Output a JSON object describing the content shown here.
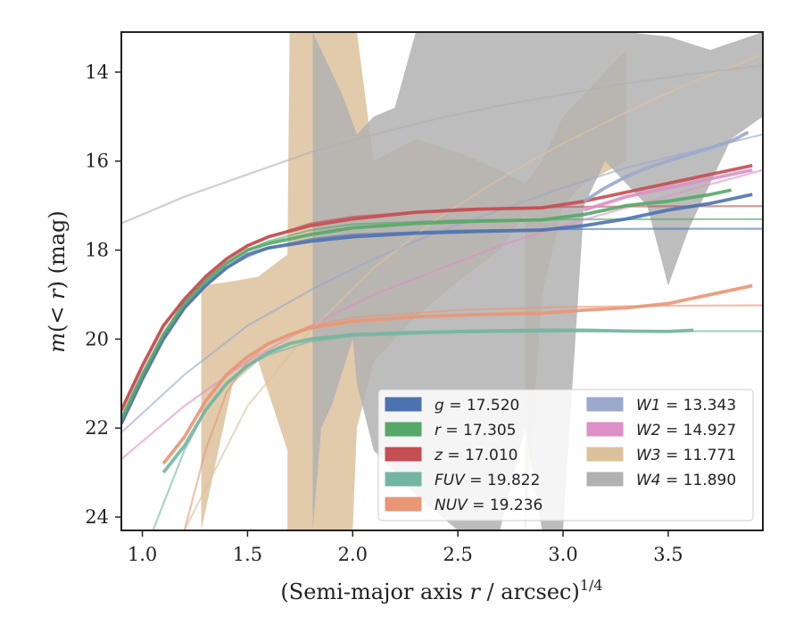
{
  "chart_data": {
    "type": "line",
    "title": "",
    "xlabel_main": "(Semi-major axis ",
    "xlabel_var": "r",
    "xlabel_tail": " / arcsec)",
    "xlabel_sup": "1/4",
    "ylabel_pre": "m",
    "ylabel_mid": "(< ",
    "ylabel_var": "r",
    "ylabel_post": ") (mag)",
    "xlim": [
      0.9,
      3.95
    ],
    "ylim": [
      24.3,
      13.1
    ],
    "y_inverted": true,
    "x_ticks": [
      1.0,
      1.5,
      2.0,
      2.5,
      3.0,
      3.5
    ],
    "x_tick_labels": [
      "1.0",
      "1.5",
      "2.0",
      "2.5",
      "3.0",
      "3.5"
    ],
    "y_ticks": [
      14,
      16,
      18,
      20,
      22,
      24
    ],
    "y_tick_labels": [
      "14",
      "16",
      "18",
      "20",
      "22",
      "24"
    ],
    "grid": false,
    "legend_position": "lower-right",
    "legend": [
      {
        "band": "g",
        "value": "17.520",
        "color": "#4c72b0"
      },
      {
        "band": "W1",
        "value": "13.343",
        "color": "#9aa9cc"
      },
      {
        "band": "r",
        "value": "17.305",
        "color": "#55a868"
      },
      {
        "band": "W2",
        "value": "14.927",
        "color": "#dd8fc6"
      },
      {
        "band": "z",
        "value": "17.010",
        "color": "#c44e52"
      },
      {
        "band": "W3",
        "value": "11.771",
        "color": "#dcc29c"
      },
      {
        "band": "FUV",
        "value": "19.822",
        "color": "#72b6a1"
      },
      {
        "band": "W4",
        "value": "11.890",
        "color": "#b1b1b1"
      },
      {
        "band": "NUV",
        "value": "19.236",
        "color": "#e99675"
      }
    ],
    "series": [
      {
        "name": "g",
        "color": "#4c72b0",
        "kind": "data",
        "x": [
          0.9,
          1.0,
          1.1,
          1.2,
          1.3,
          1.4,
          1.5,
          1.6,
          1.8,
          2.0,
          2.3,
          2.6,
          2.9,
          3.1,
          3.3,
          3.5,
          3.7,
          3.9
        ],
        "y": [
          21.9,
          20.9,
          20.0,
          19.3,
          18.8,
          18.4,
          18.1,
          17.95,
          17.8,
          17.7,
          17.62,
          17.58,
          17.55,
          17.45,
          17.3,
          17.1,
          16.95,
          16.75
        ]
      },
      {
        "name": "r",
        "color": "#55a868",
        "kind": "data",
        "x": [
          0.9,
          1.0,
          1.1,
          1.2,
          1.3,
          1.4,
          1.5,
          1.6,
          1.8,
          2.0,
          2.3,
          2.6,
          2.9,
          3.1,
          3.3,
          3.5,
          3.7,
          3.8
        ],
        "y": [
          21.8,
          20.8,
          19.9,
          19.2,
          18.7,
          18.3,
          18.0,
          17.85,
          17.65,
          17.5,
          17.4,
          17.35,
          17.32,
          17.2,
          17.0,
          16.9,
          16.75,
          16.65
        ]
      },
      {
        "name": "z",
        "color": "#c44e52",
        "kind": "data",
        "x": [
          0.9,
          1.0,
          1.1,
          1.2,
          1.3,
          1.4,
          1.5,
          1.6,
          1.8,
          2.0,
          2.3,
          2.6,
          2.9,
          3.1,
          3.3,
          3.5,
          3.7,
          3.9
        ],
        "y": [
          21.6,
          20.6,
          19.7,
          19.1,
          18.6,
          18.2,
          17.9,
          17.7,
          17.45,
          17.3,
          17.15,
          17.08,
          17.05,
          16.9,
          16.7,
          16.5,
          16.3,
          16.1
        ]
      },
      {
        "name": "FUV",
        "color": "#72b6a1",
        "kind": "data",
        "x": [
          1.1,
          1.2,
          1.3,
          1.4,
          1.5,
          1.6,
          1.7,
          1.8,
          2.0,
          2.3,
          2.6,
          2.9,
          3.1,
          3.3,
          3.5,
          3.62
        ],
        "y": [
          23.0,
          22.4,
          21.6,
          21.0,
          20.6,
          20.3,
          20.1,
          20.0,
          19.9,
          19.85,
          19.82,
          19.8,
          19.8,
          19.82,
          19.83,
          19.8
        ]
      },
      {
        "name": "NUV",
        "color": "#e99675",
        "kind": "data",
        "x": [
          1.1,
          1.2,
          1.3,
          1.4,
          1.5,
          1.6,
          1.7,
          1.8,
          2.0,
          2.3,
          2.6,
          2.9,
          3.1,
          3.3,
          3.5,
          3.7,
          3.9
        ],
        "y": [
          22.8,
          22.2,
          21.4,
          20.8,
          20.4,
          20.1,
          19.9,
          19.75,
          19.6,
          19.5,
          19.45,
          19.42,
          19.35,
          19.3,
          19.2,
          19.0,
          18.8
        ]
      },
      {
        "name": "g-model",
        "color": "#4c72b0",
        "kind": "model",
        "x": [
          0.9,
          1.0,
          1.1,
          1.2,
          1.3,
          1.4,
          1.5,
          1.6,
          1.8,
          2.0,
          2.5,
          3.0,
          3.5,
          3.95
        ],
        "y": [
          21.9,
          20.9,
          20.0,
          19.3,
          18.8,
          18.4,
          18.15,
          17.95,
          17.75,
          17.65,
          17.56,
          17.53,
          17.52,
          17.52
        ]
      },
      {
        "name": "r-model",
        "color": "#55a868",
        "kind": "model",
        "x": [
          0.9,
          1.0,
          1.1,
          1.2,
          1.3,
          1.4,
          1.5,
          1.6,
          1.8,
          2.0,
          2.5,
          3.0,
          3.5,
          3.95
        ],
        "y": [
          21.8,
          20.8,
          19.9,
          19.2,
          18.7,
          18.3,
          18.0,
          17.8,
          17.55,
          17.42,
          17.33,
          17.31,
          17.305,
          17.305
        ]
      },
      {
        "name": "z-model",
        "color": "#c44e52",
        "kind": "model",
        "x": [
          0.9,
          1.0,
          1.1,
          1.2,
          1.3,
          1.4,
          1.5,
          1.6,
          1.8,
          2.0,
          2.5,
          3.0,
          3.5,
          3.95
        ],
        "y": [
          21.6,
          20.6,
          19.7,
          19.1,
          18.6,
          18.2,
          17.9,
          17.7,
          17.4,
          17.25,
          17.08,
          17.03,
          17.015,
          17.01
        ]
      },
      {
        "name": "FUV-model",
        "color": "#72b6a1",
        "kind": "model",
        "x": [
          1.05,
          1.2,
          1.3,
          1.4,
          1.5,
          1.6,
          1.8,
          2.0,
          2.5,
          3.0,
          3.5,
          3.95
        ],
        "y": [
          24.3,
          22.5,
          21.6,
          21.0,
          20.6,
          20.35,
          20.05,
          19.93,
          19.85,
          19.83,
          19.822,
          19.822
        ]
      },
      {
        "name": "NUV-model",
        "color": "#e99675",
        "kind": "model",
        "x": [
          1.2,
          1.3,
          1.4,
          1.5,
          1.6,
          1.8,
          2.0,
          2.5,
          3.0,
          3.5,
          3.95
        ],
        "y": [
          24.3,
          22.5,
          21.2,
          20.5,
          20.1,
          19.7,
          19.52,
          19.35,
          19.28,
          19.25,
          19.24
        ]
      },
      {
        "name": "W1-model",
        "color": "#9aa9cc",
        "kind": "model",
        "x": [
          0.9,
          1.2,
          1.5,
          1.8,
          2.1,
          2.4,
          2.7,
          3.0,
          3.3,
          3.6,
          3.95
        ],
        "y": [
          22.1,
          20.8,
          19.7,
          18.9,
          18.2,
          17.6,
          17.1,
          16.6,
          16.15,
          15.8,
          15.4
        ]
      },
      {
        "name": "W2-model",
        "color": "#dd8fc6",
        "kind": "model",
        "x": [
          0.9,
          1.2,
          1.5,
          1.8,
          2.1,
          2.4,
          2.7,
          3.0,
          3.3,
          3.6,
          3.95
        ],
        "y": [
          22.7,
          21.5,
          20.5,
          19.7,
          19.0,
          18.45,
          17.9,
          17.45,
          17.05,
          16.65,
          16.2
        ]
      },
      {
        "name": "W3-model",
        "color": "#dcc29c",
        "kind": "model",
        "x": [
          1.2,
          1.5,
          1.8,
          2.1,
          2.4,
          2.7,
          3.0,
          3.3,
          3.6,
          3.95
        ],
        "y": [
          24.3,
          21.5,
          19.8,
          18.4,
          17.3,
          16.4,
          15.6,
          14.9,
          14.25,
          13.6
        ]
      },
      {
        "name": "W4-model",
        "color": "#b1b1b1",
        "kind": "model",
        "x": [
          0.9,
          1.2,
          1.5,
          1.8,
          2.1,
          2.4,
          2.7,
          3.0,
          3.3,
          3.6,
          3.95
        ],
        "y": [
          17.4,
          16.8,
          16.3,
          15.8,
          15.4,
          15.05,
          14.75,
          14.5,
          14.25,
          14.05,
          13.85
        ]
      },
      {
        "name": "W1",
        "color": "#9aa9cc",
        "kind": "data",
        "x": [
          3.1,
          3.2,
          3.3,
          3.4,
          3.5,
          3.6,
          3.7,
          3.8,
          3.88
        ],
        "y": [
          16.9,
          16.6,
          16.35,
          16.15,
          16.0,
          15.85,
          15.7,
          15.55,
          15.35
        ]
      },
      {
        "name": "W2",
        "color": "#dd8fc6",
        "kind": "data",
        "x": [
          3.1,
          3.2,
          3.3,
          3.4,
          3.5,
          3.6,
          3.7,
          3.8,
          3.9
        ],
        "y": [
          17.1,
          16.95,
          16.8,
          16.7,
          16.6,
          16.5,
          16.4,
          16.3,
          16.2
        ]
      }
    ],
    "bands": [
      {
        "name": "W3",
        "color": "#dcc29c",
        "x_lo": [
          1.28,
          1.43,
          1.55,
          1.69,
          1.69,
          1.7,
          1.8,
          2.0,
          2.02,
          2.1,
          2.3,
          2.5,
          2.7,
          2.82,
          2.82,
          2.9,
          3.0,
          3.1,
          3.3
        ],
        "lo": [
          24.3,
          21.0,
          20.5,
          22.5,
          24.3,
          24.3,
          24.3,
          24.3,
          22.0,
          20.5,
          19.5,
          18.7,
          18.0,
          17.2,
          24.3,
          19.0,
          17.0,
          16.5,
          16.0
        ],
        "x_hi": [
          1.28,
          1.43,
          1.55,
          1.69,
          1.7,
          1.8,
          2.0,
          2.02,
          2.1,
          2.3,
          2.5,
          2.7,
          2.82,
          2.9,
          3.0,
          3.1,
          3.3
        ],
        "hi": [
          18.8,
          18.7,
          18.6,
          18.1,
          13.1,
          13.1,
          13.1,
          13.1,
          16.0,
          15.5,
          15.8,
          16.2,
          16.5,
          16.0,
          15.0,
          14.5,
          13.5
        ]
      },
      {
        "name": "W4",
        "color": "#b1b1b1",
        "x_lo": [
          1.81,
          1.85,
          1.9,
          2.0,
          2.02,
          2.1,
          2.3,
          2.5,
          2.7,
          2.82,
          2.9,
          3.0,
          3.1,
          3.2,
          3.4,
          3.5,
          3.6,
          3.7,
          3.8,
          3.95
        ],
        "lo": [
          24.3,
          22.0,
          21.5,
          20.0,
          21.0,
          22.5,
          23.5,
          24.3,
          24.3,
          22.0,
          24.3,
          24.3,
          17.0,
          16.0,
          17.0,
          18.8,
          17.5,
          16.5,
          15.5,
          15.0
        ],
        "x_hi": [
          1.81,
          1.95,
          2.02,
          2.1,
          2.2,
          2.3,
          2.5,
          2.7,
          2.9,
          3.1,
          3.3,
          3.5,
          3.7,
          3.95
        ],
        "hi": [
          13.1,
          14.5,
          15.4,
          15.0,
          14.8,
          13.1,
          13.1,
          13.1,
          13.1,
          13.1,
          13.1,
          13.2,
          13.5,
          13.1
        ]
      }
    ]
  }
}
